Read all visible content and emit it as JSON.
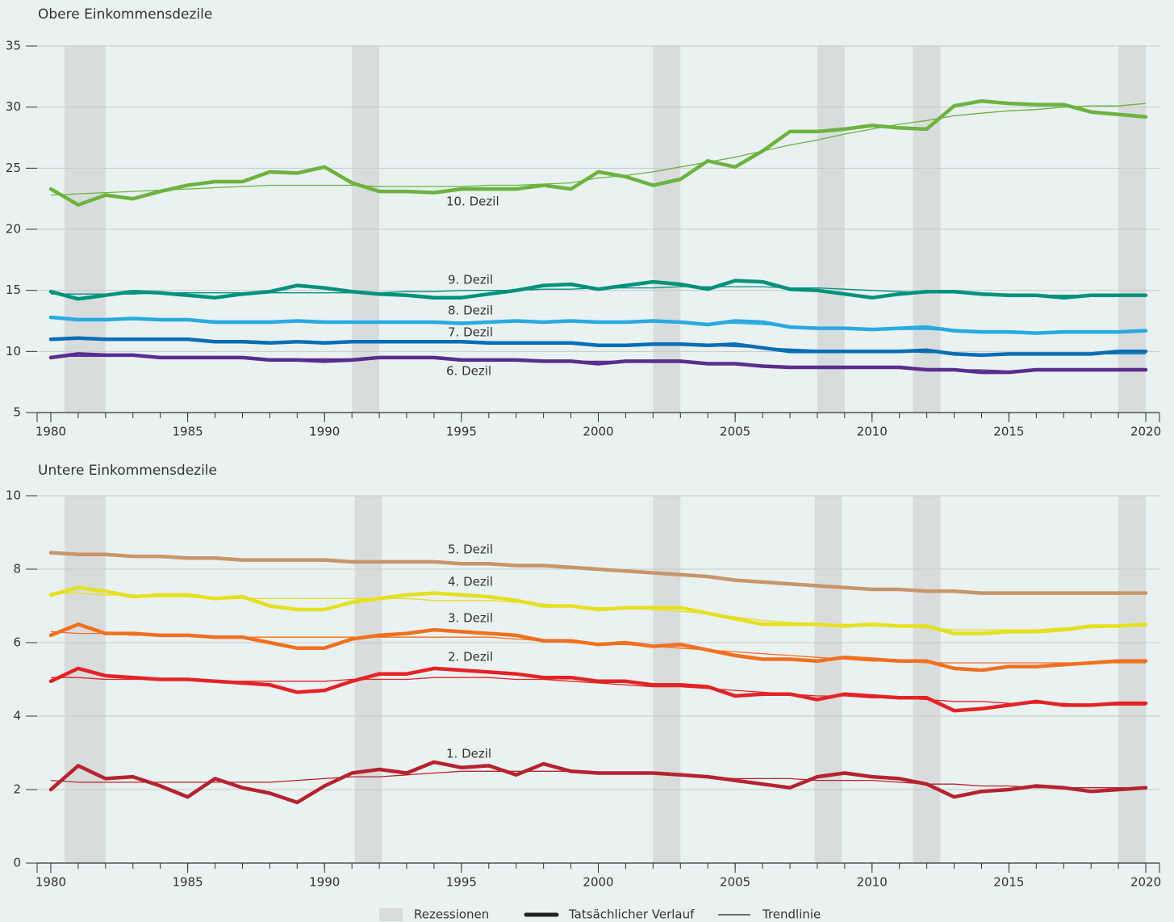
{
  "chart_data": [
    {
      "type": "line",
      "title": "Obere Einkommensdezile",
      "x": [
        1980,
        1981,
        1982,
        1983,
        1984,
        1985,
        1986,
        1987,
        1988,
        1989,
        1990,
        1991,
        1992,
        1993,
        1994,
        1995,
        1996,
        1997,
        1998,
        1999,
        2000,
        2001,
        2002,
        2003,
        2004,
        2005,
        2006,
        2007,
        2008,
        2009,
        2010,
        2011,
        2012,
        2013,
        2014,
        2015,
        2016,
        2017,
        2018,
        2019,
        2020
      ],
      "xlim": [
        1979.5,
        2020.5
      ],
      "xticks": [
        1980,
        1985,
        1990,
        1995,
        2000,
        2005,
        2010,
        2015,
        2020
      ],
      "ylim": [
        5,
        35
      ],
      "yticks": [
        5,
        10,
        15,
        20,
        25,
        30,
        35
      ],
      "grid": true,
      "recessions": [
        [
          1980.5,
          1982
        ],
        [
          1991,
          1992
        ],
        [
          2002,
          2003
        ],
        [
          2008,
          2009
        ],
        [
          2011.5,
          2012.5
        ],
        [
          2019,
          2020
        ]
      ],
      "series": [
        {
          "name": "10. Dezil",
          "color": "#6cb33f",
          "values": [
            23.3,
            22.0,
            22.8,
            22.5,
            23.1,
            23.6,
            23.9,
            23.9,
            24.7,
            24.6,
            25.1,
            23.8,
            23.1,
            23.1,
            23.0,
            23.3,
            23.3,
            23.3,
            23.6,
            23.3,
            24.7,
            24.3,
            23.6,
            24.1,
            25.6,
            25.1,
            26.4,
            28.0,
            28.0,
            28.2,
            28.5,
            28.3,
            28.2,
            30.1,
            30.5,
            30.3,
            30.2,
            30.2,
            29.6,
            29.4,
            29.2
          ],
          "trend": [
            22.8,
            22.9,
            23.0,
            23.1,
            23.2,
            23.3,
            23.4,
            23.5,
            23.6,
            23.6,
            23.6,
            23.6,
            23.5,
            23.5,
            23.5,
            23.5,
            23.6,
            23.6,
            23.7,
            23.8,
            24.2,
            24.4,
            24.7,
            25.1,
            25.5,
            25.9,
            26.4,
            26.9,
            27.3,
            27.8,
            28.2,
            28.6,
            28.9,
            29.3,
            29.5,
            29.7,
            29.8,
            30.0,
            30.1,
            30.1,
            30.3
          ]
        },
        {
          "name": "9. Dezil",
          "color": "#00927c",
          "values": [
            14.9,
            14.3,
            14.6,
            14.9,
            14.8,
            14.6,
            14.4,
            14.7,
            14.9,
            15.4,
            15.2,
            14.9,
            14.7,
            14.6,
            14.4,
            14.4,
            14.7,
            15.0,
            15.4,
            15.5,
            15.1,
            15.4,
            15.7,
            15.5,
            15.1,
            15.8,
            15.7,
            15.1,
            15.0,
            14.7,
            14.4,
            14.7,
            14.9,
            14.9,
            14.7,
            14.6,
            14.6,
            14.4,
            14.6,
            14.6,
            14.6
          ],
          "trend": [
            14.7,
            14.7,
            14.7,
            14.7,
            14.8,
            14.8,
            14.8,
            14.8,
            14.8,
            14.8,
            14.8,
            14.8,
            14.8,
            14.9,
            14.9,
            15.0,
            15.0,
            15.0,
            15.1,
            15.1,
            15.2,
            15.2,
            15.2,
            15.3,
            15.3,
            15.3,
            15.3,
            15.2,
            15.2,
            15.1,
            15.0,
            14.9,
            14.8,
            14.8,
            14.7,
            14.7,
            14.6,
            14.6,
            14.6,
            14.6,
            14.6
          ]
        },
        {
          "name": "8. Dezil",
          "color": "#29aae1",
          "values": [
            12.8,
            12.6,
            12.6,
            12.7,
            12.6,
            12.6,
            12.4,
            12.4,
            12.4,
            12.5,
            12.4,
            12.4,
            12.4,
            12.4,
            12.4,
            12.3,
            12.4,
            12.5,
            12.4,
            12.5,
            12.4,
            12.4,
            12.5,
            12.4,
            12.2,
            12.5,
            12.4,
            12.0,
            11.9,
            11.9,
            11.8,
            11.9,
            12.0,
            11.7,
            11.6,
            11.6,
            11.5,
            11.6,
            11.6,
            11.6,
            11.7
          ],
          "trend": [
            12.7,
            12.7,
            12.7,
            12.6,
            12.6,
            12.6,
            12.5,
            12.5,
            12.5,
            12.5,
            12.4,
            12.4,
            12.4,
            12.4,
            12.4,
            12.4,
            12.4,
            12.4,
            12.4,
            12.4,
            12.4,
            12.4,
            12.4,
            12.3,
            12.3,
            12.3,
            12.2,
            12.1,
            12.0,
            12.0,
            11.9,
            11.8,
            11.8,
            11.7,
            11.7,
            11.6,
            11.6,
            11.6,
            11.6,
            11.6,
            11.6
          ]
        },
        {
          "name": "7. Dezil",
          "color": "#0a6eb4",
          "values": [
            11.0,
            11.1,
            11.0,
            11.0,
            11.0,
            11.0,
            10.8,
            10.8,
            10.7,
            10.8,
            10.7,
            10.8,
            10.8,
            10.8,
            10.8,
            10.8,
            10.7,
            10.7,
            10.7,
            10.7,
            10.5,
            10.5,
            10.6,
            10.6,
            10.5,
            10.6,
            10.3,
            10.0,
            10.0,
            10.0,
            10.0,
            10.0,
            10.1,
            9.8,
            9.7,
            9.8,
            9.8,
            9.8,
            9.8,
            10.0,
            10.0
          ],
          "trend": [
            11.0,
            11.0,
            11.0,
            10.9,
            10.9,
            10.9,
            10.9,
            10.9,
            10.8,
            10.8,
            10.8,
            10.8,
            10.8,
            10.8,
            10.7,
            10.7,
            10.7,
            10.7,
            10.7,
            10.6,
            10.6,
            10.6,
            10.6,
            10.5,
            10.5,
            10.4,
            10.3,
            10.2,
            10.1,
            10.1,
            10.0,
            10.0,
            9.9,
            9.9,
            9.8,
            9.8,
            9.8,
            9.8,
            9.8,
            9.8,
            9.8
          ]
        },
        {
          "name": "6. Dezil",
          "color": "#5b2d8e",
          "values": [
            9.5,
            9.8,
            9.7,
            9.7,
            9.5,
            9.5,
            9.5,
            9.5,
            9.3,
            9.3,
            9.2,
            9.3,
            9.5,
            9.5,
            9.5,
            9.3,
            9.3,
            9.3,
            9.2,
            9.2,
            9.0,
            9.2,
            9.2,
            9.2,
            9.0,
            9.0,
            8.8,
            8.7,
            8.7,
            8.7,
            8.7,
            8.7,
            8.5,
            8.5,
            8.3,
            8.3,
            8.5,
            8.5,
            8.5,
            8.5,
            8.5
          ],
          "trend": [
            9.6,
            9.6,
            9.6,
            9.6,
            9.5,
            9.5,
            9.5,
            9.5,
            9.4,
            9.4,
            9.4,
            9.4,
            9.4,
            9.4,
            9.4,
            9.3,
            9.3,
            9.3,
            9.2,
            9.2,
            9.2,
            9.2,
            9.1,
            9.1,
            9.0,
            9.0,
            8.9,
            8.8,
            8.7,
            8.7,
            8.7,
            8.6,
            8.6,
            8.5,
            8.5,
            8.4,
            8.4,
            8.4,
            8.4,
            8.4,
            8.4
          ]
        }
      ]
    },
    {
      "type": "line",
      "title": "Untere Einkommensdezile",
      "x": [
        1980,
        1981,
        1982,
        1983,
        1984,
        1985,
        1986,
        1987,
        1988,
        1989,
        1990,
        1991,
        1992,
        1993,
        1994,
        1995,
        1996,
        1997,
        1998,
        1999,
        2000,
        2001,
        2002,
        2003,
        2004,
        2005,
        2006,
        2007,
        2008,
        2009,
        2010,
        2011,
        2012,
        2013,
        2014,
        2015,
        2016,
        2017,
        2018,
        2019,
        2020
      ],
      "xlim": [
        1979.5,
        2020.5
      ],
      "xticks": [
        1980,
        1985,
        1990,
        1995,
        2000,
        2005,
        2010,
        2015,
        2020
      ],
      "ylim": [
        0,
        10
      ],
      "yticks": [
        0,
        2,
        4,
        6,
        8,
        10
      ],
      "grid": true,
      "recessions": [
        [
          1980.5,
          1982
        ],
        [
          1991.1,
          1992.1
        ],
        [
          2002,
          2003
        ],
        [
          2007.9,
          2008.9
        ],
        [
          2011.5,
          2012.5
        ],
        [
          2019,
          2020
        ]
      ],
      "series": [
        {
          "name": "5. Dezil",
          "color": "#c8956a",
          "values": [
            8.45,
            8.4,
            8.4,
            8.35,
            8.35,
            8.3,
            8.3,
            8.25,
            8.25,
            8.25,
            8.25,
            8.2,
            8.2,
            8.2,
            8.2,
            8.15,
            8.15,
            8.1,
            8.1,
            8.05,
            8.0,
            7.95,
            7.9,
            7.85,
            7.8,
            7.7,
            7.65,
            7.6,
            7.55,
            7.5,
            7.45,
            7.45,
            7.4,
            7.4,
            7.35,
            7.35,
            7.35,
            7.35,
            7.35,
            7.35,
            7.35
          ],
          "trend": [
            8.45,
            8.42,
            8.4,
            8.37,
            8.35,
            8.32,
            8.3,
            8.27,
            8.25,
            8.24,
            8.23,
            8.22,
            8.21,
            8.2,
            8.19,
            8.17,
            8.15,
            8.12,
            8.09,
            8.05,
            8.0,
            7.95,
            7.9,
            7.85,
            7.79,
            7.72,
            7.66,
            7.6,
            7.55,
            7.5,
            7.46,
            7.43,
            7.41,
            7.39,
            7.37,
            7.36,
            7.35,
            7.35,
            7.35,
            7.35,
            7.35
          ]
        },
        {
          "name": "4. Dezil",
          "color": "#e5e020",
          "values": [
            7.3,
            7.5,
            7.4,
            7.25,
            7.3,
            7.3,
            7.2,
            7.25,
            7.0,
            6.9,
            6.9,
            7.1,
            7.2,
            7.3,
            7.35,
            7.3,
            7.25,
            7.15,
            7.0,
            7.0,
            6.9,
            6.95,
            6.95,
            6.95,
            6.8,
            6.65,
            6.5,
            6.5,
            6.5,
            6.45,
            6.5,
            6.45,
            6.45,
            6.25,
            6.25,
            6.3,
            6.3,
            6.35,
            6.45,
            6.45,
            6.5
          ],
          "trend": [
            7.35,
            7.35,
            7.3,
            7.3,
            7.25,
            7.25,
            7.2,
            7.2,
            7.2,
            7.2,
            7.2,
            7.2,
            7.2,
            7.2,
            7.15,
            7.15,
            7.15,
            7.1,
            7.05,
            7.0,
            6.95,
            6.95,
            6.9,
            6.85,
            6.8,
            6.7,
            6.6,
            6.55,
            6.5,
            6.5,
            6.45,
            6.45,
            6.4,
            6.35,
            6.35,
            6.35,
            6.35,
            6.4,
            6.4,
            6.45,
            6.45
          ]
        },
        {
          "name": "3. Dezil",
          "color": "#f07020",
          "values": [
            6.2,
            6.5,
            6.25,
            6.25,
            6.2,
            6.2,
            6.15,
            6.15,
            6.0,
            5.85,
            5.85,
            6.1,
            6.2,
            6.25,
            6.35,
            6.3,
            6.25,
            6.2,
            6.05,
            6.05,
            5.95,
            6.0,
            5.9,
            5.95,
            5.8,
            5.65,
            5.55,
            5.55,
            5.5,
            5.6,
            5.55,
            5.5,
            5.5,
            5.3,
            5.25,
            5.35,
            5.35,
            5.4,
            5.45,
            5.5,
            5.5
          ],
          "trend": [
            6.3,
            6.25,
            6.25,
            6.2,
            6.2,
            6.2,
            6.15,
            6.15,
            6.15,
            6.15,
            6.15,
            6.15,
            6.15,
            6.15,
            6.15,
            6.15,
            6.15,
            6.1,
            6.05,
            6.0,
            5.95,
            5.95,
            5.9,
            5.85,
            5.8,
            5.75,
            5.7,
            5.65,
            5.6,
            5.55,
            5.5,
            5.5,
            5.45,
            5.45,
            5.45,
            5.45,
            5.45,
            5.45,
            5.45,
            5.45,
            5.45
          ]
        },
        {
          "name": "2. Dezil",
          "color": "#e32326",
          "values": [
            4.95,
            5.3,
            5.1,
            5.05,
            5.0,
            5.0,
            4.95,
            4.9,
            4.85,
            4.65,
            4.7,
            4.95,
            5.15,
            5.15,
            5.3,
            5.25,
            5.2,
            5.15,
            5.05,
            5.05,
            4.95,
            4.95,
            4.85,
            4.85,
            4.8,
            4.55,
            4.6,
            4.6,
            4.45,
            4.6,
            4.55,
            4.5,
            4.5,
            4.15,
            4.2,
            4.3,
            4.4,
            4.3,
            4.3,
            4.35,
            4.35
          ],
          "trend": [
            5.05,
            5.05,
            5.0,
            5.0,
            5.0,
            5.0,
            4.95,
            4.95,
            4.95,
            4.95,
            4.95,
            5.0,
            5.0,
            5.0,
            5.05,
            5.05,
            5.05,
            5.0,
            5.0,
            4.95,
            4.9,
            4.85,
            4.8,
            4.8,
            4.75,
            4.7,
            4.65,
            4.6,
            4.55,
            4.55,
            4.5,
            4.5,
            4.45,
            4.4,
            4.4,
            4.35,
            4.35,
            4.35,
            4.3,
            4.3,
            4.3
          ]
        },
        {
          "name": "1. Dezil",
          "color": "#b5232f",
          "values": [
            2.0,
            2.65,
            2.3,
            2.35,
            2.1,
            1.8,
            2.3,
            2.05,
            1.9,
            1.65,
            2.1,
            2.45,
            2.55,
            2.45,
            2.75,
            2.6,
            2.65,
            2.4,
            2.7,
            2.5,
            2.45,
            2.45,
            2.45,
            2.4,
            2.35,
            2.25,
            2.15,
            2.05,
            2.35,
            2.45,
            2.35,
            2.3,
            2.15,
            1.8,
            1.95,
            2.0,
            2.1,
            2.05,
            1.95,
            2.0,
            2.05
          ],
          "trend": [
            2.25,
            2.2,
            2.2,
            2.2,
            2.2,
            2.2,
            2.2,
            2.2,
            2.2,
            2.25,
            2.3,
            2.35,
            2.35,
            2.4,
            2.45,
            2.5,
            2.5,
            2.5,
            2.5,
            2.5,
            2.45,
            2.45,
            2.45,
            2.4,
            2.35,
            2.3,
            2.3,
            2.3,
            2.25,
            2.25,
            2.25,
            2.2,
            2.15,
            2.15,
            2.1,
            2.1,
            2.05,
            2.05,
            2.05,
            2.05,
            2.05
          ]
        }
      ]
    }
  ],
  "legend": {
    "recessions": "Rezessionen",
    "actual": "Tatsächlicher Verlauf",
    "trend": "Trendlinie"
  }
}
